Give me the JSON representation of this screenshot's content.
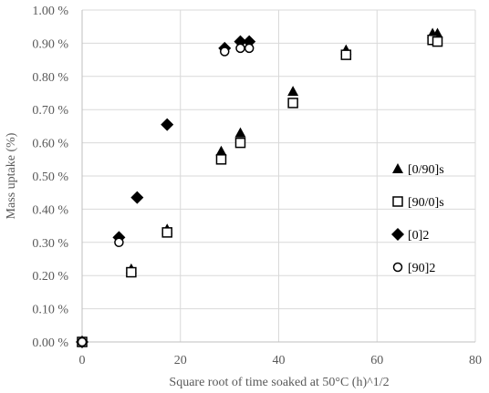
{
  "chart_data": {
    "type": "scatter",
    "title": "",
    "xlabel": "Square root of time soaked at 50°C (h)^1/2",
    "ylabel": "Mass uptake (%)",
    "xlim": [
      0,
      80
    ],
    "ylim": [
      0,
      1.0
    ],
    "x_ticks": [
      "0",
      "20",
      "40",
      "60",
      "80"
    ],
    "y_ticks": [
      "0.00 %",
      "0.10 %",
      "0.20 %",
      "0.30 %",
      "0.40 %",
      "0.50 %",
      "0.60 %",
      "0.70 %",
      "0.80 %",
      "0.90 %",
      "1.00 %"
    ],
    "grid": true,
    "legend_position": "right",
    "series": [
      {
        "name": "[0/90]s",
        "marker": "triangle",
        "color": "#000000",
        "points": [
          {
            "x": 0,
            "y": 0.0
          },
          {
            "x": 10,
            "y": 0.22
          },
          {
            "x": 17.3,
            "y": 0.34
          },
          {
            "x": 28.3,
            "y": 0.575
          },
          {
            "x": 32.2,
            "y": 0.63
          },
          {
            "x": 42.9,
            "y": 0.755
          },
          {
            "x": 53.7,
            "y": 0.88
          },
          {
            "x": 71.3,
            "y": 0.93
          },
          {
            "x": 72.3,
            "y": 0.93
          }
        ]
      },
      {
        "name": "[90/0]s",
        "marker": "square-open",
        "color": "#000000",
        "points": [
          {
            "x": 0,
            "y": 0.0
          },
          {
            "x": 10,
            "y": 0.21
          },
          {
            "x": 17.3,
            "y": 0.33
          },
          {
            "x": 28.3,
            "y": 0.55
          },
          {
            "x": 32.2,
            "y": 0.6
          },
          {
            "x": 42.9,
            "y": 0.72
          },
          {
            "x": 53.7,
            "y": 0.865
          },
          {
            "x": 71.3,
            "y": 0.91
          },
          {
            "x": 72.3,
            "y": 0.905
          }
        ]
      },
      {
        "name": "[0]2",
        "marker": "diamond",
        "color": "#000000",
        "points": [
          {
            "x": 0,
            "y": 0.0
          },
          {
            "x": 7.5,
            "y": 0.315
          },
          {
            "x": 11.2,
            "y": 0.435
          },
          {
            "x": 17.3,
            "y": 0.655
          },
          {
            "x": 29.0,
            "y": 0.885
          },
          {
            "x": 32.2,
            "y": 0.905
          },
          {
            "x": 34.0,
            "y": 0.905
          }
        ]
      },
      {
        "name": "[90]2",
        "marker": "circle-open",
        "color": "#000000",
        "points": [
          {
            "x": 0,
            "y": 0.0
          },
          {
            "x": 7.5,
            "y": 0.3
          },
          {
            "x": 29.0,
            "y": 0.875
          },
          {
            "x": 32.2,
            "y": 0.885
          },
          {
            "x": 34.0,
            "y": 0.885
          }
        ]
      }
    ]
  }
}
